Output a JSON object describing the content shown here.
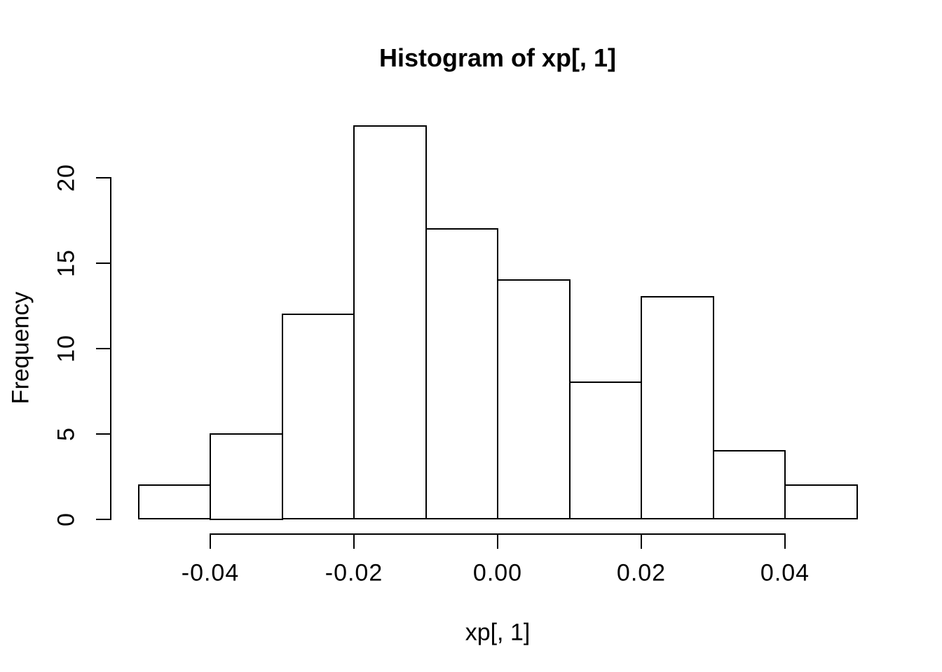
{
  "page": {
    "background": "#ffffff"
  },
  "chart_data": {
    "type": "bar",
    "subtype": "histogram",
    "title": "Histogram of xp[, 1]",
    "xlabel": "xp[, 1]",
    "ylabel": "Frequency",
    "breaks": [
      -0.05,
      -0.04,
      -0.03,
      -0.02,
      -0.01,
      0.0,
      0.01,
      0.02,
      0.03,
      0.04,
      0.05
    ],
    "counts": [
      2,
      5,
      12,
      23,
      17,
      14,
      8,
      13,
      4,
      2
    ],
    "x_ticks": [
      {
        "value": -0.04,
        "label": "-0.04"
      },
      {
        "value": -0.02,
        "label": "-0.02"
      },
      {
        "value": 0.0,
        "label": "0.00"
      },
      {
        "value": 0.02,
        "label": "0.02"
      },
      {
        "value": 0.04,
        "label": "0.04"
      }
    ],
    "y_ticks": [
      {
        "value": 0,
        "label": "0"
      },
      {
        "value": 5,
        "label": "5"
      },
      {
        "value": 10,
        "label": "10"
      },
      {
        "value": 15,
        "label": "15"
      },
      {
        "value": 20,
        "label": "20"
      }
    ],
    "xlim": [
      -0.05,
      0.05
    ],
    "ylim": [
      0,
      23
    ],
    "y_axis_range": [
      0,
      20
    ],
    "grid": false,
    "legend": "none",
    "bar_fill": "#ffffff",
    "bar_stroke": "#000000",
    "axis_color": "#000000",
    "text_color": "#000000"
  }
}
